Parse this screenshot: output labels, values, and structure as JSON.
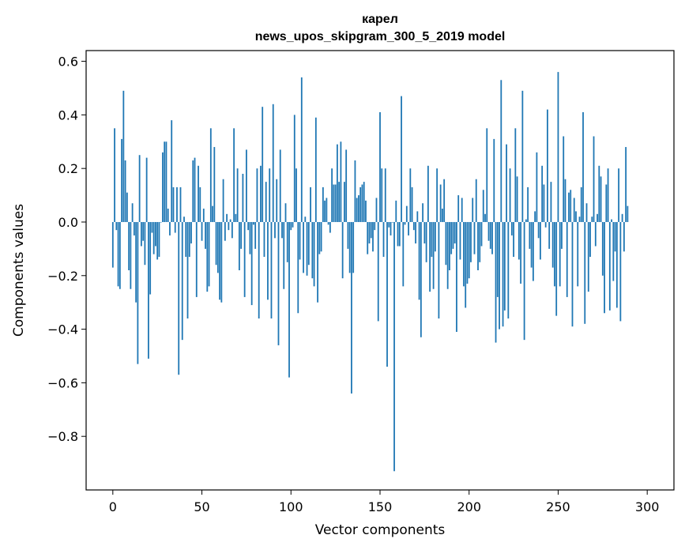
{
  "chart_data": {
    "type": "bar",
    "title_line1": "карел",
    "title_line2": "news_upos_skipgram_300_5_2019 model",
    "xlabel": "Vector components",
    "ylabel": "Components values",
    "xlim": [
      -15,
      315
    ],
    "ylim": [
      -1.0,
      0.64
    ],
    "xticks": [
      0,
      50,
      100,
      150,
      200,
      250,
      300
    ],
    "xtick_labels": [
      "0",
      "50",
      "100",
      "150",
      "200",
      "250",
      "300"
    ],
    "yticks": [
      0.6,
      0.4,
      0.2,
      0.0,
      -0.2,
      -0.4,
      -0.6,
      -0.8
    ],
    "ytick_labels": [
      "0.6",
      "0.4",
      "0.2",
      "0.0",
      "−0.2",
      "−0.4",
      "−0.6",
      "−0.8"
    ],
    "bar_color": "#1f77b4",
    "grid": false,
    "values": [
      -0.17,
      0.35,
      -0.03,
      -0.24,
      -0.25,
      0.31,
      0.49,
      0.23,
      0.11,
      -0.18,
      -0.25,
      0.07,
      -0.05,
      -0.3,
      -0.53,
      0.25,
      -0.09,
      -0.07,
      -0.16,
      0.24,
      -0.51,
      -0.27,
      -0.04,
      -0.12,
      -0.09,
      -0.14,
      -0.13,
      0.0,
      0.26,
      0.3,
      0.3,
      0.05,
      -0.05,
      0.38,
      0.13,
      -0.04,
      0.13,
      -0.57,
      0.13,
      -0.44,
      0.02,
      -0.13,
      -0.36,
      -0.13,
      -0.08,
      0.23,
      0.24,
      -0.28,
      0.21,
      0.13,
      -0.07,
      0.05,
      -0.1,
      -0.26,
      -0.24,
      0.35,
      0.06,
      0.28,
      -0.16,
      -0.19,
      -0.29,
      -0.3,
      0.16,
      -0.07,
      0.03,
      -0.03,
      0.01,
      -0.06,
      0.35,
      0.03,
      0.2,
      -0.18,
      -0.1,
      0.18,
      -0.28,
      0.27,
      -0.03,
      -0.12,
      -0.31,
      -0.01,
      -0.1,
      0.2,
      -0.36,
      0.21,
      0.43,
      -0.13,
      0.15,
      -0.29,
      0.2,
      -0.36,
      0.44,
      -0.06,
      0.16,
      -0.46,
      0.27,
      -0.06,
      -0.25,
      0.07,
      -0.15,
      -0.58,
      -0.03,
      -0.02,
      0.4,
      0.2,
      -0.34,
      -0.14,
      0.54,
      -0.19,
      0.02,
      -0.2,
      -0.16,
      0.13,
      -0.21,
      -0.24,
      0.39,
      -0.3,
      -0.12,
      -0.11,
      0.13,
      0.08,
      0.09,
      -0.01,
      -0.04,
      0.2,
      0.14,
      0.14,
      0.29,
      0.15,
      0.3,
      -0.21,
      0.15,
      0.27,
      -0.1,
      -0.19,
      -0.64,
      -0.19,
      0.23,
      0.09,
      0.1,
      0.13,
      0.14,
      0.15,
      0.08,
      -0.12,
      -0.08,
      -0.06,
      -0.11,
      -0.03,
      0.09,
      -0.37,
      0.41,
      0.2,
      -0.13,
      0.2,
      -0.54,
      -0.02,
      -0.05,
      0.0,
      -0.93,
      0.08,
      -0.09,
      -0.09,
      0.47,
      -0.24,
      -0.01,
      0.06,
      -0.05,
      0.2,
      0.13,
      -0.03,
      -0.08,
      0.04,
      -0.29,
      -0.43,
      0.07,
      -0.08,
      -0.15,
      0.21,
      -0.26,
      -0.13,
      -0.25,
      -0.11,
      0.2,
      -0.36,
      0.14,
      0.05,
      0.16,
      -0.16,
      -0.25,
      -0.18,
      -0.12,
      -0.1,
      -0.08,
      -0.41,
      0.1,
      -0.14,
      0.09,
      -0.24,
      -0.32,
      -0.23,
      -0.21,
      -0.15,
      0.09,
      -0.12,
      0.16,
      -0.18,
      -0.15,
      -0.09,
      0.12,
      0.03,
      0.35,
      -0.07,
      -0.1,
      -0.12,
      0.31,
      -0.45,
      -0.28,
      -0.4,
      0.53,
      -0.39,
      -0.33,
      0.29,
      -0.36,
      0.2,
      -0.05,
      -0.13,
      0.35,
      0.17,
      -0.14,
      -0.23,
      0.49,
      -0.44,
      0.01,
      0.13,
      -0.1,
      -0.17,
      -0.22,
      0.04,
      0.26,
      -0.06,
      -0.14,
      0.21,
      0.14,
      -0.02,
      0.42,
      -0.1,
      0.15,
      -0.17,
      -0.24,
      -0.35,
      0.56,
      -0.24,
      -0.1,
      0.32,
      0.16,
      -0.28,
      0.11,
      0.12,
      -0.39,
      0.09,
      0.04,
      -0.24,
      0.02,
      0.13,
      0.41,
      -0.38,
      0.07,
      -0.26,
      -0.13,
      0.02,
      0.32,
      -0.09,
      0.03,
      0.21,
      0.17,
      -0.2,
      -0.34,
      0.14,
      0.2,
      -0.33,
      0.01,
      -0.22,
      -0.11,
      -0.32,
      0.2,
      -0.37,
      0.03,
      -0.11,
      0.28,
      0.06
    ]
  }
}
